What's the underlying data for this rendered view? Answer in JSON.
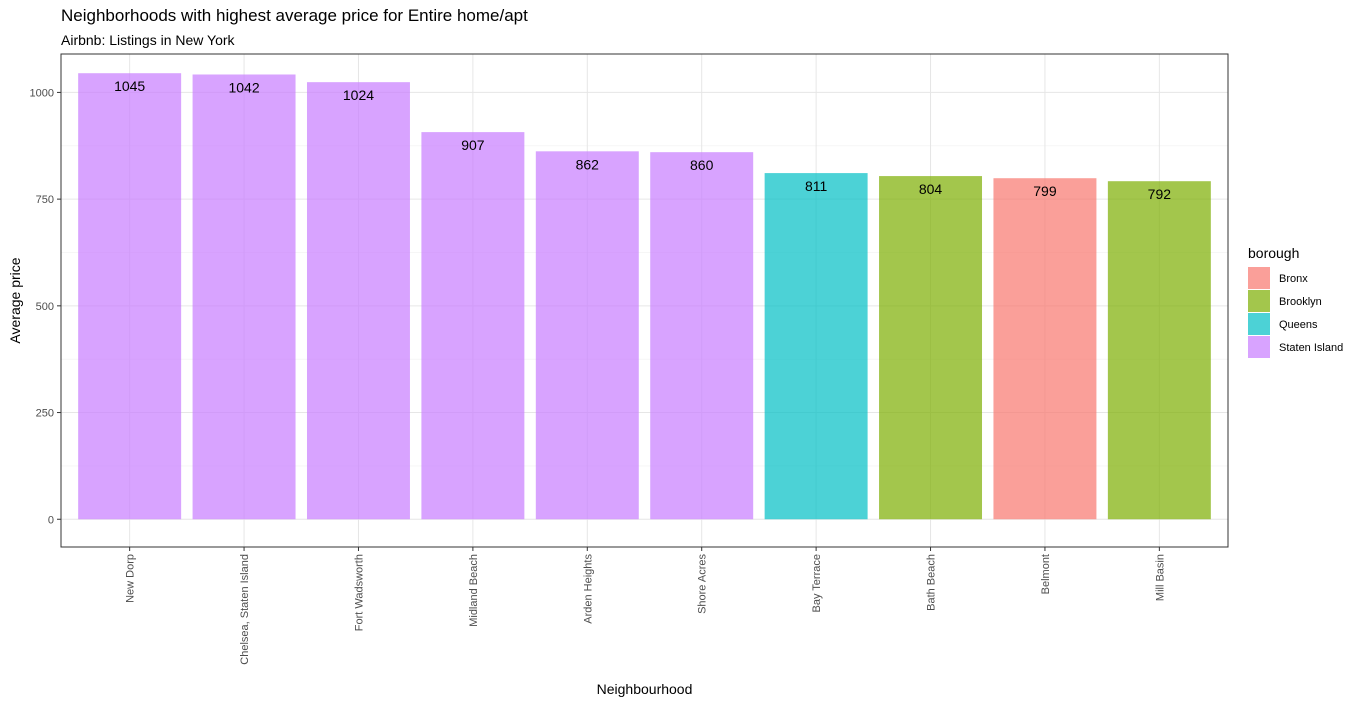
{
  "chart_data": {
    "type": "bar",
    "title": "Neighborhoods with highest average price for Entire home/apt",
    "subtitle": "Airbnb: Listings in New York",
    "xlabel": "Neighbourhood",
    "ylabel": "Average price",
    "ylim": [
      -65,
      1090
    ],
    "yticks": [
      0,
      250,
      500,
      750,
      1000
    ],
    "grid": true,
    "legend": {
      "title": "borough",
      "position": "right",
      "entries": [
        {
          "name": "Bronx",
          "color": "#F8766D"
        },
        {
          "name": "Brooklyn",
          "color": "#7CAE00"
        },
        {
          "name": "Queens",
          "color": "#00BFC4"
        },
        {
          "name": "Staten Island",
          "color": "#C77CFF"
        }
      ]
    },
    "bars": [
      {
        "category": "New Dorp",
        "value": 1045,
        "label": "1045",
        "borough": "Staten Island"
      },
      {
        "category": "Chelsea, Staten Island",
        "value": 1042,
        "label": "1042",
        "borough": "Staten Island"
      },
      {
        "category": "Fort Wadsworth",
        "value": 1024,
        "label": "1024",
        "borough": "Staten Island"
      },
      {
        "category": "Midland Beach",
        "value": 907,
        "label": "907",
        "borough": "Staten Island"
      },
      {
        "category": "Arden Heights",
        "value": 862,
        "label": "862",
        "borough": "Staten Island"
      },
      {
        "category": "Shore Acres",
        "value": 860,
        "label": "860",
        "borough": "Staten Island"
      },
      {
        "category": "Bay Terrace",
        "value": 811,
        "label": "811",
        "borough": "Queens"
      },
      {
        "category": "Bath Beach",
        "value": 804,
        "label": "804",
        "borough": "Brooklyn"
      },
      {
        "category": "Belmont",
        "value": 799,
        "label": "799",
        "borough": "Bronx"
      },
      {
        "category": "Mill Basin",
        "value": 792,
        "label": "792",
        "borough": "Brooklyn"
      }
    ]
  }
}
